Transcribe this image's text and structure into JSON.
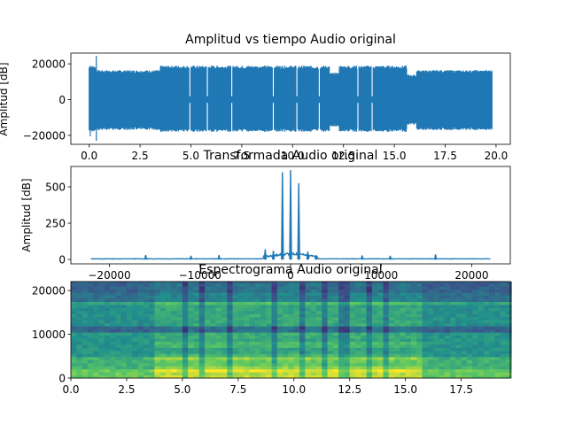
{
  "figure": {
    "background": "#ffffff",
    "line_color": "#1f77b4"
  },
  "chart_data": [
    {
      "type": "line",
      "title": "Amplitud vs tiempo Audio original",
      "xlabel": "",
      "ylabel": "Amplitud [dB]",
      "xlim": [
        -0.9,
        20.7
      ],
      "ylim": [
        -25000,
        26000
      ],
      "xticks": [
        0.0,
        2.5,
        5.0,
        7.5,
        10.0,
        12.5,
        15.0,
        17.5,
        20.0
      ],
      "xtick_labels": [
        "0.0",
        "2.5",
        "5.0",
        "7.5",
        "10.0",
        "12.5",
        "15.0",
        "17.5",
        "20.0"
      ],
      "yticks": [
        -20000,
        0,
        20000
      ],
      "ytick_labels": [
        "−20000",
        "0",
        "20000"
      ],
      "series": [
        {
          "envelope": [
            {
              "start": 0.0,
              "end": 0.3,
              "upper": 19000,
              "lower": -18000
            },
            {
              "start": 0.3,
              "end": 3.5,
              "upper": 16500,
              "lower": -17000
            },
            {
              "start": 3.5,
              "end": 11.8,
              "upper": 19000,
              "lower": -18000
            },
            {
              "start": 11.8,
              "end": 12.3,
              "upper": 15000,
              "lower": -15000
            },
            {
              "start": 12.3,
              "end": 15.6,
              "upper": 19000,
              "lower": -18000
            },
            {
              "start": 15.6,
              "end": 16.1,
              "upper": 14000,
              "lower": -14000
            },
            {
              "start": 16.1,
              "end": 19.8,
              "upper": 16500,
              "lower": -17000
            }
          ],
          "peaks": [
            {
              "x": 0.35,
              "upper": 24500,
              "lower": -23000
            },
            {
              "x": 0.05,
              "upper": 19000,
              "lower": -20500
            }
          ],
          "gaps": [
            4.95,
            5.8,
            7.0,
            9.05,
            10.2,
            11.3,
            13.2,
            13.9
          ]
        }
      ]
    },
    {
      "type": "line",
      "title": "Transformada Audio original",
      "xlabel": "",
      "ylabel": "Amplitud [dB]",
      "xlim": [
        -24255,
        24255
      ],
      "ylim": [
        -30,
        640
      ],
      "xticks": [
        -20000,
        -10000,
        0,
        10000,
        20000
      ],
      "xtick_labels": [
        "−20000",
        "−10000",
        "0",
        "10000",
        "20000"
      ],
      "yticks": [
        0,
        250,
        500
      ],
      "ytick_labels": [
        "0",
        "250",
        "500"
      ],
      "series": [
        {
          "baseline": 3,
          "peaks": [
            {
              "x": 0,
              "y": 615
            },
            {
              "x": -900,
              "y": 600
            },
            {
              "x": 900,
              "y": 525
            },
            {
              "x": -1900,
              "y": 60
            },
            {
              "x": 1900,
              "y": 55
            },
            {
              "x": -2800,
              "y": 70
            },
            {
              "x": 2800,
              "y": 30
            },
            {
              "x": -7900,
              "y": 30
            },
            {
              "x": 7900,
              "y": 28
            },
            {
              "x": -11000,
              "y": 25
            },
            {
              "x": 11000,
              "y": 25
            },
            {
              "x": -16000,
              "y": 30
            },
            {
              "x": 16000,
              "y": 35
            }
          ],
          "bump": {
            "from": -3000,
            "to": 3000,
            "height": 45
          }
        }
      ]
    },
    {
      "type": "heatmap",
      "title": "Espectrograma Audio original",
      "xlabel": "",
      "ylabel": "",
      "xlim": [
        0,
        19.7
      ],
      "ylim": [
        0,
        22050
      ],
      "xticks": [
        0.0,
        2.5,
        5.0,
        7.5,
        10.0,
        12.5,
        15.0,
        17.5
      ],
      "xtick_labels": [
        "0.0",
        "2.5",
        "5.0",
        "7.5",
        "10.0",
        "12.5",
        "15.0",
        "17.5"
      ],
      "yticks": [
        0,
        10000,
        20000
      ],
      "ytick_labels": [
        "0",
        "10000",
        "20000"
      ],
      "colormap": "viridis",
      "bands": [
        {
          "from": 0,
          "to": 2000,
          "level": 0.92
        },
        {
          "from": 2000,
          "to": 4500,
          "level": 0.78
        },
        {
          "from": 4500,
          "to": 10500,
          "level": 0.62
        },
        {
          "from": 10500,
          "to": 11800,
          "level": 0.38
        },
        {
          "from": 11800,
          "to": 16300,
          "level": 0.6
        },
        {
          "from": 16300,
          "to": 17200,
          "level": 0.7
        },
        {
          "from": 17200,
          "to": 19000,
          "level": 0.45
        },
        {
          "from": 19000,
          "to": 22050,
          "level": 0.38
        }
      ],
      "active_region": [
        3.6,
        15.7
      ],
      "gaps": [
        4.95,
        5.8,
        7.0,
        9.05,
        10.2,
        11.3,
        12.0,
        12.3,
        13.2,
        13.9
      ]
    }
  ]
}
